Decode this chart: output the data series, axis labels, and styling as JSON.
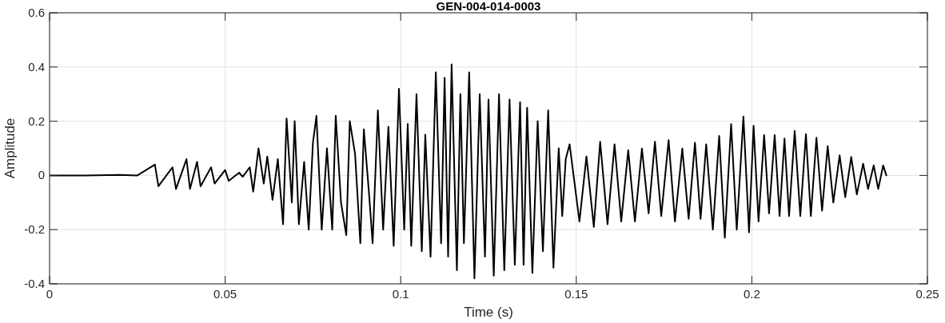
{
  "chart_data": {
    "type": "line",
    "title": "GEN-004-014-0003",
    "xlabel": "Time (s)",
    "ylabel": "Amplitude",
    "xlim": [
      0,
      0.25
    ],
    "xticks": [
      0,
      0.05,
      0.1,
      0.15,
      0.2,
      0.25
    ],
    "ylim": [
      -0.4,
      0.6
    ],
    "yticks": [
      -0.4,
      -0.2,
      0,
      0.2,
      0.4,
      0.6
    ],
    "grid": true,
    "marker": "none",
    "line_style": "solid",
    "series": [
      {
        "color": "#000000",
        "x": [
          0,
          0.01,
          0.02,
          0.025,
          0.03,
          0.031,
          0.035,
          0.036,
          0.039,
          0.04,
          0.042,
          0.043,
          0.046,
          0.047,
          0.05,
          0.051,
          0.054,
          0.055,
          0.057,
          0.058,
          0.0595,
          0.061,
          0.062,
          0.0635,
          0.065,
          0.0665,
          0.0675,
          0.069,
          0.0698,
          0.071,
          0.0725,
          0.0738,
          0.075,
          0.076,
          0.0775,
          0.079,
          0.0805,
          0.0815,
          0.083,
          0.0845,
          0.0855,
          0.087,
          0.0885,
          0.0895,
          0.091,
          0.092,
          0.0935,
          0.095,
          0.0965,
          0.098,
          0.0995,
          0.101,
          0.102,
          0.103,
          0.1045,
          0.106,
          0.107,
          0.1085,
          0.11,
          0.1115,
          0.1125,
          0.1135,
          0.1145,
          0.116,
          0.117,
          0.118,
          0.1195,
          0.121,
          0.1225,
          0.124,
          0.125,
          0.1265,
          0.128,
          0.1295,
          0.131,
          0.1325,
          0.134,
          0.135,
          0.136,
          0.1375,
          0.139,
          0.1405,
          0.142,
          0.1435,
          0.145,
          0.146,
          0.147,
          0.1481,
          0.1509,
          0.1529,
          0.155,
          0.1568,
          0.1589,
          0.1609,
          0.1628,
          0.1648,
          0.1667,
          0.1687,
          0.1706,
          0.1724,
          0.1742,
          0.1763,
          0.1781,
          0.1802,
          0.182,
          0.1838,
          0.1854,
          0.187,
          0.1889,
          0.1907,
          0.1923,
          0.1941,
          0.1957,
          0.1976,
          0.1992,
          0.2005,
          0.2019,
          0.2035,
          0.2049,
          0.2065,
          0.2079,
          0.2093,
          0.2106,
          0.2122,
          0.2138,
          0.2154,
          0.2168,
          0.2184,
          0.22,
          0.2216,
          0.2232,
          0.225,
          0.2266,
          0.2283,
          0.2299,
          0.2317,
          0.2331,
          0.2347,
          0.236,
          0.2374,
          0.2383
        ],
        "values": [
          0,
          0,
          0.002,
          0,
          0.04,
          -0.04,
          0.03,
          -0.05,
          0.06,
          -0.05,
          0.05,
          -0.04,
          0.03,
          -0.03,
          0.02,
          -0.02,
          0.01,
          -0.005,
          0.03,
          -0.06,
          0.1,
          -0.03,
          0.07,
          -0.09,
          0.06,
          -0.18,
          0.21,
          -0.1,
          0.2,
          -0.18,
          0.05,
          -0.2,
          0.12,
          0.22,
          -0.2,
          0.1,
          -0.2,
          0.22,
          -0.1,
          -0.22,
          0.2,
          0.08,
          -0.25,
          0.17,
          -0.07,
          -0.25,
          0.24,
          -0.2,
          0.18,
          -0.26,
          0.32,
          -0.2,
          0.19,
          -0.26,
          0.3,
          -0.28,
          0.15,
          -0.3,
          0.38,
          -0.25,
          0.36,
          -0.3,
          0.41,
          -0.35,
          0.3,
          -0.25,
          0.38,
          -0.38,
          0.3,
          -0.3,
          0.28,
          -0.37,
          0.3,
          -0.35,
          0.28,
          -0.33,
          0.27,
          -0.33,
          0.25,
          -0.36,
          0.2,
          -0.28,
          0.24,
          -0.34,
          0.1,
          -0.15,
          0.06,
          0.115,
          -0.17,
          0.07,
          -0.19,
          0.124,
          -0.18,
          0.115,
          -0.17,
          0.093,
          -0.17,
          0.099,
          -0.14,
          0.124,
          -0.15,
          0.13,
          -0.17,
          0.099,
          -0.16,
          0.121,
          -0.16,
          0.115,
          -0.2,
          0.146,
          -0.23,
          0.189,
          -0.2,
          0.217,
          -0.21,
          0.183,
          -0.17,
          0.149,
          -0.14,
          0.149,
          -0.15,
          0.136,
          -0.15,
          0.164,
          -0.15,
          0.152,
          -0.15,
          0.139,
          -0.13,
          0.108,
          -0.1,
          0.074,
          -0.08,
          0.068,
          -0.07,
          0.043,
          -0.05,
          0.037,
          -0.05,
          0.037,
          0
        ]
      }
    ]
  }
}
